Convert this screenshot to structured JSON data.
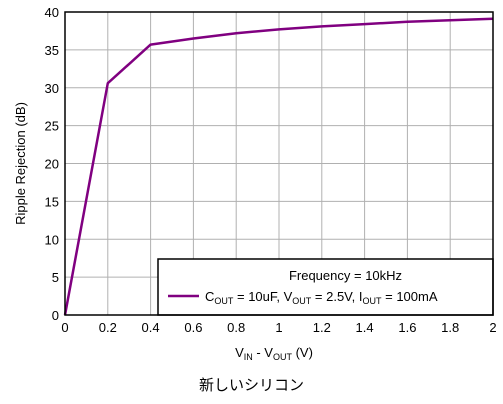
{
  "chart_data": {
    "type": "line",
    "title": "",
    "xlabel": {
      "main": "V",
      "sub1": "IN",
      "mid": " - V",
      "sub2": "OUT",
      "tail": " (V)"
    },
    "ylabel": "Ripple Rejection (dB)",
    "xlim": [
      0,
      2
    ],
    "ylim": [
      0,
      40
    ],
    "x_ticks": [
      "0",
      "0.2",
      "0.4",
      "0.6",
      "0.8",
      "1",
      "1.2",
      "1.4",
      "1.6",
      "1.8",
      "2"
    ],
    "y_ticks": [
      "0",
      "5",
      "10",
      "15",
      "20",
      "25",
      "30",
      "35",
      "40"
    ],
    "grid": true,
    "legend_position": "bottom-right",
    "legend": {
      "line1": "Frequency = 10kHz",
      "line2_parts": [
        {
          "t": "C",
          "sub": false
        },
        {
          "t": "OUT",
          "sub": true
        },
        {
          "t": " = 10uF, V",
          "sub": false
        },
        {
          "t": "OUT",
          "sub": true
        },
        {
          "t": " = 2.5V, I",
          "sub": false
        },
        {
          "t": "OUT",
          "sub": true
        },
        {
          "t": " = 100mA",
          "sub": false
        }
      ]
    },
    "series": [
      {
        "color": "#800080",
        "x": [
          0,
          0.2,
          0.4,
          0.6,
          0.8,
          1.0,
          1.2,
          1.4,
          1.6,
          1.8,
          2.0
        ],
        "y": [
          0,
          30.6,
          35.7,
          36.5,
          37.2,
          37.7,
          38.1,
          38.4,
          38.7,
          38.9,
          39.1
        ]
      }
    ]
  },
  "footer_text": "新しいシリコン"
}
